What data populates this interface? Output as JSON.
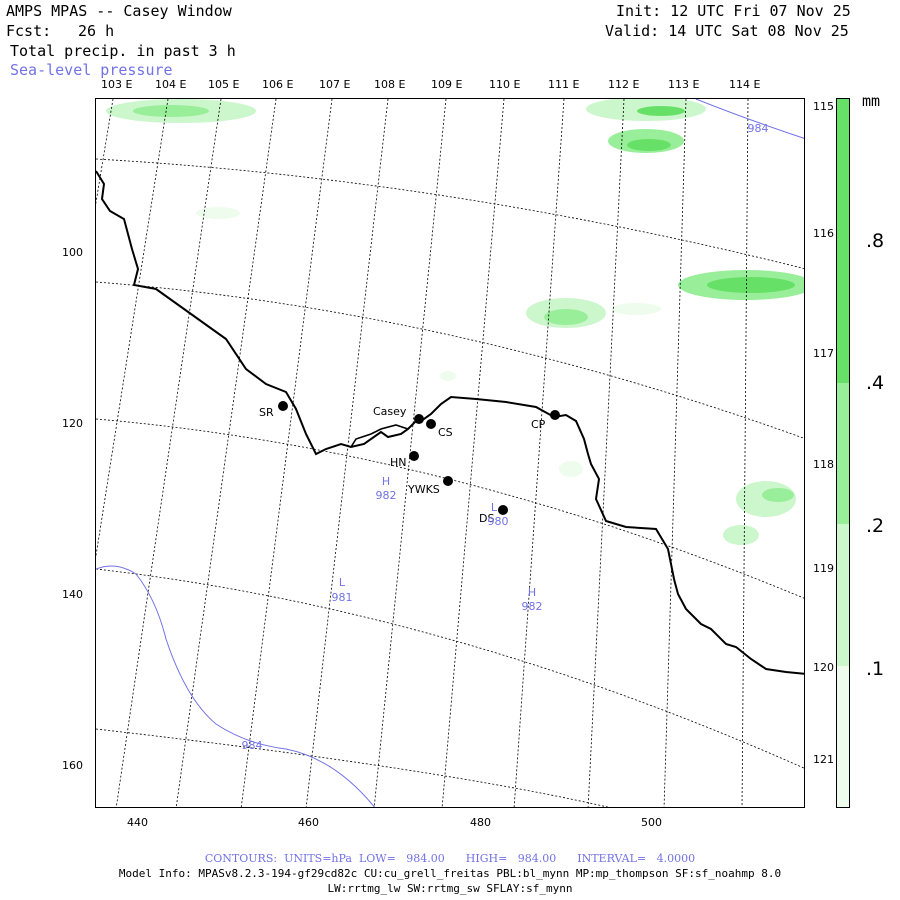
{
  "header": {
    "title": "AMPS MPAS -- Casey Window",
    "forecast_label": "Fcst:",
    "forecast_hours": "26 h",
    "field": "Total precip. in past 3 h",
    "overlay": "Sea-level pressure",
    "init": "Init: 12 UTC Fri 07 Nov 25",
    "valid": "Valid: 14 UTC Sat 08 Nov 25"
  },
  "axes": {
    "x_ticks": [
      "440",
      "460",
      "480",
      "500"
    ],
    "y_ticks": [
      "100",
      "120",
      "140",
      "160"
    ]
  },
  "longitudes_top": [
    "103 E",
    "104 E",
    "105 E",
    "106 E",
    "107 E",
    "108 E",
    "109 E",
    "110 E",
    "111 E",
    "112 E",
    "113 E",
    "114 E"
  ],
  "longitudes_right": [
    "115 E",
    "116 E",
    "117 E",
    "118 E",
    "119 E",
    "120 E",
    "121 E"
  ],
  "colorbar": {
    "unit": "mm",
    "labels": [
      ".8",
      ".4",
      ".2",
      ".1"
    ],
    "colors": [
      "#66e066",
      "#99ee99",
      "#ccf6cc",
      "#eefcee",
      "#ffffff"
    ]
  },
  "stations": [
    {
      "name": "SR"
    },
    {
      "name": "Casey"
    },
    {
      "name": "CS"
    },
    {
      "name": "HN"
    },
    {
      "name": "YWKS"
    },
    {
      "name": "DS"
    },
    {
      "name": "CP"
    }
  ],
  "pressure_labels": [
    {
      "kind": "H",
      "value": "982"
    },
    {
      "kind": "L",
      "value": "981"
    },
    {
      "kind": "L",
      "value": "980"
    },
    {
      "kind": "H",
      "value": "982"
    }
  ],
  "isobar_labels": [
    "984",
    "984"
  ],
  "footer": {
    "contours": "CONTOURS:  UNITS=hPa  LOW=   984.00      HIGH=   984.00      INTERVAL=   4.0000",
    "model_info": "Model Info: MPASv8.2.3-194-gf29cd82c CU:cu_grell_freitas PBL:bl_mynn MP:mp_thompson SF:sf_noahmp 8.0",
    "model_info2": "LW:rrtmg_lw SW:rrtmg_sw SFLAY:sf_mynn"
  }
}
